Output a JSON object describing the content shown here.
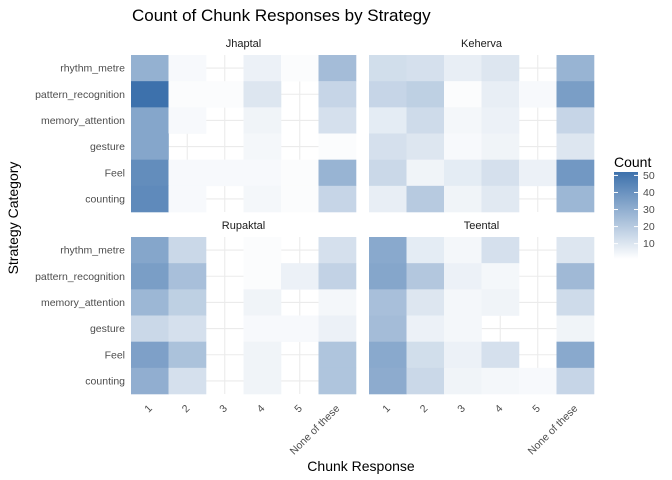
{
  "chart_data": {
    "type": "heatmap",
    "title": "Count of Chunk Responses by Strategy",
    "xlabel": "Chunk Response",
    "ylabel": "Strategy Category",
    "x_categories": [
      "1",
      "2",
      "3",
      "4",
      "5",
      "None of these"
    ],
    "y_categories": [
      "rhythm_metre",
      "pattern_recognition",
      "memory_attention",
      "gesture",
      "Feel",
      "counting"
    ],
    "legend": {
      "title": "Count",
      "ticks": [
        10,
        20,
        30,
        40,
        50
      ],
      "range": [
        1,
        52
      ],
      "color_low": "#ffffff",
      "color_high": "#3d71ac",
      "placement": "right"
    },
    "panels": [
      {
        "name": "Jhaptal",
        "values": [
          [
            29,
            3,
            null,
            6,
            2,
            25
          ],
          [
            52,
            2,
            2,
            10,
            null,
            16
          ],
          [
            33,
            3,
            null,
            5,
            null,
            12
          ],
          [
            33,
            null,
            null,
            4,
            null,
            2
          ],
          [
            42,
            3,
            3,
            3,
            2,
            28
          ],
          [
            43,
            3,
            null,
            4,
            2,
            16
          ]
        ]
      },
      {
        "name": "Keherva",
        "values": [
          [
            13,
            12,
            7,
            10,
            null,
            28
          ],
          [
            16,
            18,
            2,
            7,
            3,
            36
          ],
          [
            8,
            14,
            4,
            6,
            null,
            16
          ],
          [
            12,
            10,
            3,
            5,
            null,
            10
          ],
          [
            15,
            5,
            8,
            12,
            6,
            38
          ],
          [
            7,
            20,
            5,
            9,
            null,
            27
          ]
        ]
      },
      {
        "name": "Rupaktal",
        "values": [
          [
            33,
            15,
            null,
            2,
            null,
            12
          ],
          [
            36,
            24,
            null,
            2,
            6,
            17
          ],
          [
            27,
            18,
            null,
            5,
            null,
            4
          ],
          [
            15,
            12,
            null,
            3,
            3,
            6
          ],
          [
            35,
            23,
            null,
            5,
            null,
            22
          ],
          [
            30,
            12,
            null,
            5,
            null,
            22
          ]
        ]
      },
      {
        "name": "Teental",
        "values": [
          [
            32,
            8,
            4,
            12,
            null,
            10
          ],
          [
            33,
            21,
            6,
            4,
            null,
            26
          ],
          [
            24,
            10,
            4,
            5,
            null,
            14
          ],
          [
            25,
            6,
            4,
            null,
            null,
            5
          ],
          [
            32,
            13,
            6,
            12,
            null,
            32
          ],
          [
            31,
            15,
            5,
            4,
            3,
            16
          ]
        ]
      }
    ]
  }
}
